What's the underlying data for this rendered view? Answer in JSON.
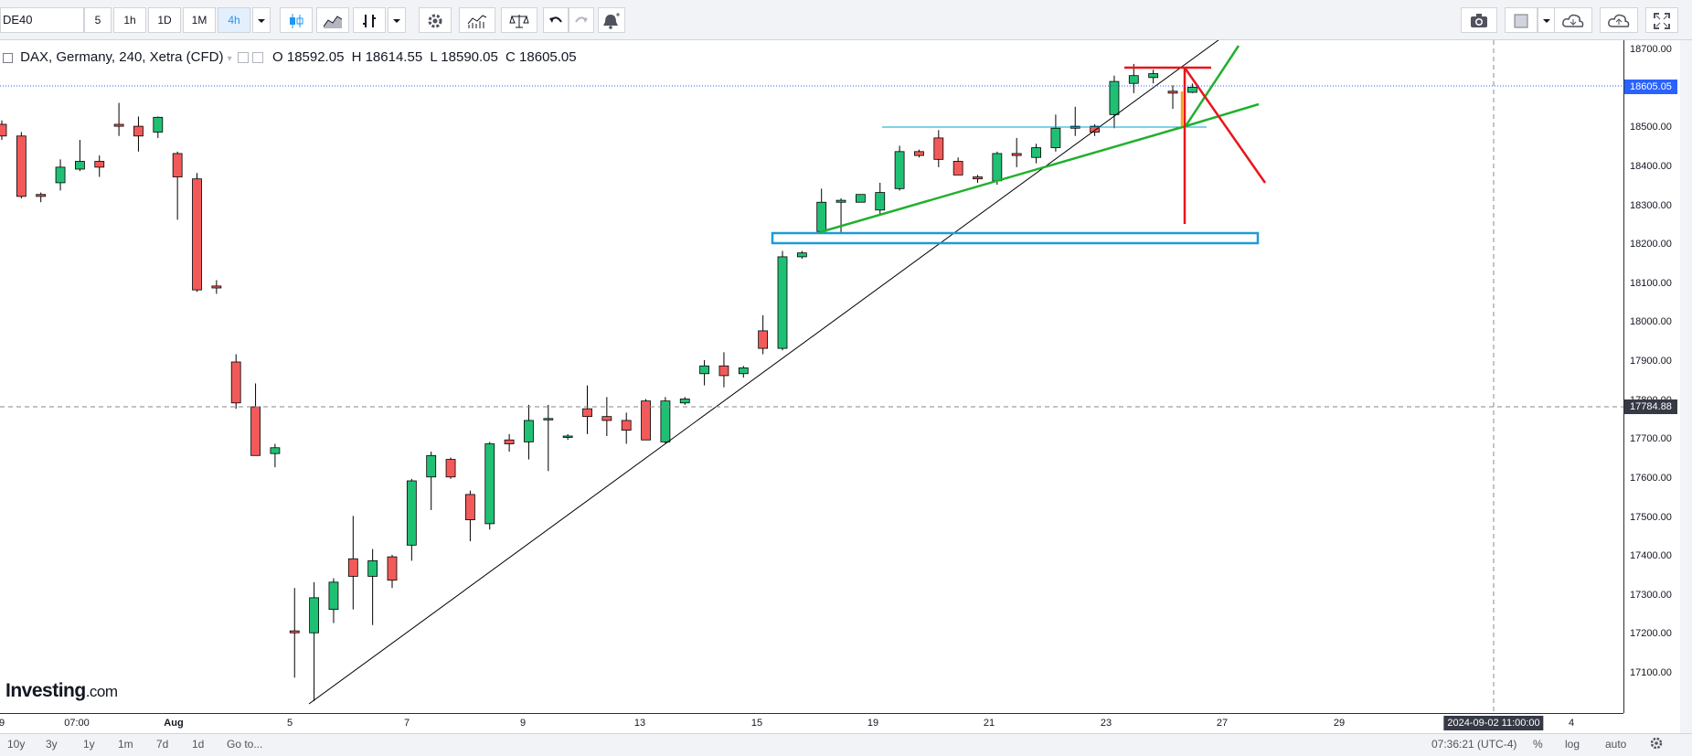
{
  "toolbar": {
    "symbol": "DE40",
    "intervals": [
      "5",
      "1h",
      "1D",
      "1M",
      "4h"
    ],
    "active_interval": "4h",
    "icons": [
      "dropdown-icon",
      "candles-icon",
      "area-chart-icon",
      "bars-icon",
      "dropdown-icon",
      "settings-icon",
      "indicators-icon",
      "compare-icon",
      "undo-icon",
      "redo-icon",
      "alert-icon",
      "camera-icon",
      "drawing-box-icon",
      "dropdown-icon",
      "cloud-download-icon",
      "cloud-upload-icon",
      "fullscreen-icon"
    ]
  },
  "legend": {
    "title": "DAX, Germany, 240, Xetra (CFD)",
    "open": "O 18592.05",
    "high": "H 18614.55",
    "low": "L 18590.05",
    "close": "C 18605.05"
  },
  "price_axis": {
    "ticks": [
      "18700.00",
      "18600.00",
      "18500.00",
      "18400.00",
      "18300.00",
      "18200.00",
      "18100.00",
      "18000.00",
      "17900.00",
      "17800.00",
      "17700.00",
      "17600.00",
      "17500.00",
      "17400.00",
      "17300.00",
      "17200.00",
      "17100.00"
    ],
    "last_price": "18605.05",
    "crosshair_price": "17784.88"
  },
  "time_axis": {
    "ticks": [
      "9",
      "07:00",
      "Aug",
      "5",
      "7",
      "9",
      "13",
      "15",
      "19",
      "21",
      "23",
      "27",
      "29",
      "4"
    ],
    "crosshair_time": "2024-09-02 11:00:00"
  },
  "bottom_bar": {
    "ranges": [
      "10y",
      "3y",
      "1y",
      "1m",
      "7d",
      "1d",
      "Go to..."
    ],
    "clock": "07:36:21 (UTC-4)",
    "percent": "%",
    "log": "log",
    "auto": "auto"
  },
  "logo": {
    "main": "Investing",
    "suffix": ".com"
  },
  "colors": {
    "up": "#089981",
    "down": "#f23645",
    "up_fill": "#26a69a",
    "down_fill": "#ef5350",
    "accent": "#2962ff",
    "trend_green": "#22b02e",
    "trend_red": "#e8151b",
    "box_blue": "#1e9bd7"
  },
  "chart_data": {
    "type": "candlestick",
    "symbol": "DAX, Germany, 240, Xetra (CFD)",
    "ylim": [
      17010,
      18740
    ],
    "y_ticks": [
      17100,
      17200,
      17300,
      17400,
      17500,
      17600,
      17700,
      17800,
      17900,
      18000,
      18100,
      18200,
      18300,
      18400,
      18500,
      18600,
      18700
    ],
    "last_price": 18605.05,
    "crosshair_price": 17784.88,
    "candles": [
      {
        "o": 18510,
        "h": 18520,
        "l": 18470,
        "c": 18480
      },
      {
        "o": 18480,
        "h": 18490,
        "l": 18320,
        "c": 18325
      },
      {
        "o": 18330,
        "h": 18335,
        "l": 18310,
        "c": 18325
      },
      {
        "o": 18360,
        "h": 18420,
        "l": 18340,
        "c": 18400
      },
      {
        "o": 18395,
        "h": 18470,
        "l": 18390,
        "c": 18415
      },
      {
        "o": 18415,
        "h": 18430,
        "l": 18375,
        "c": 18400
      },
      {
        "o": 18510,
        "h": 18565,
        "l": 18480,
        "c": 18505
      },
      {
        "o": 18505,
        "h": 18530,
        "l": 18440,
        "c": 18480
      },
      {
        "o": 18490,
        "h": 18530,
        "l": 18475,
        "c": 18528
      },
      {
        "o": 18435,
        "h": 18440,
        "l": 18265,
        "c": 18375
      },
      {
        "o": 18370,
        "h": 18385,
        "l": 18080,
        "c": 18085
      },
      {
        "o": 18095,
        "h": 18110,
        "l": 18075,
        "c": 18090
      },
      {
        "o": 17900,
        "h": 17920,
        "l": 17780,
        "c": 17795
      },
      {
        "o": 17785,
        "h": 17845,
        "l": 17660,
        "c": 17660
      },
      {
        "o": 17665,
        "h": 17690,
        "l": 17630,
        "c": 17680
      },
      {
        "o": 17210,
        "h": 17320,
        "l": 17090,
        "c": 17205
      },
      {
        "o": 17205,
        "h": 17335,
        "l": 17030,
        "c": 17295
      },
      {
        "o": 17265,
        "h": 17345,
        "l": 17230,
        "c": 17335
      },
      {
        "o": 17395,
        "h": 17505,
        "l": 17265,
        "c": 17350
      },
      {
        "o": 17350,
        "h": 17420,
        "l": 17225,
        "c": 17390
      },
      {
        "o": 17400,
        "h": 17405,
        "l": 17320,
        "c": 17340
      },
      {
        "o": 17430,
        "h": 17600,
        "l": 17390,
        "c": 17595
      },
      {
        "o": 17605,
        "h": 17670,
        "l": 17520,
        "c": 17660
      },
      {
        "o": 17650,
        "h": 17655,
        "l": 17600,
        "c": 17605
      },
      {
        "o": 17560,
        "h": 17570,
        "l": 17440,
        "c": 17495
      },
      {
        "o": 17485,
        "h": 17695,
        "l": 17470,
        "c": 17690
      },
      {
        "o": 17700,
        "h": 17715,
        "l": 17670,
        "c": 17690
      },
      {
        "o": 17695,
        "h": 17790,
        "l": 17650,
        "c": 17750
      },
      {
        "o": 17755,
        "h": 17790,
        "l": 17620,
        "c": 17755
      },
      {
        "o": 17710,
        "h": 17715,
        "l": 17700,
        "c": 17710
      },
      {
        "o": 17780,
        "h": 17840,
        "l": 17715,
        "c": 17760
      },
      {
        "o": 17760,
        "h": 17810,
        "l": 17710,
        "c": 17750
      },
      {
        "o": 17750,
        "h": 17770,
        "l": 17690,
        "c": 17725
      },
      {
        "o": 17800,
        "h": 17805,
        "l": 17700,
        "c": 17700
      },
      {
        "o": 17695,
        "h": 17810,
        "l": 17690,
        "c": 17800
      },
      {
        "o": 17795,
        "h": 17810,
        "l": 17790,
        "c": 17805
      },
      {
        "o": 17870,
        "h": 17905,
        "l": 17840,
        "c": 17890
      },
      {
        "o": 17890,
        "h": 17925,
        "l": 17835,
        "c": 17865
      },
      {
        "o": 17870,
        "h": 17890,
        "l": 17860,
        "c": 17885
      },
      {
        "o": 17980,
        "h": 18020,
        "l": 17920,
        "c": 17935
      },
      {
        "o": 17935,
        "h": 18185,
        "l": 17930,
        "c": 18170
      },
      {
        "o": 18170,
        "h": 18185,
        "l": 18165,
        "c": 18180
      },
      {
        "o": 18235,
        "h": 18345,
        "l": 18230,
        "c": 18310
      },
      {
        "o": 18310,
        "h": 18320,
        "l": 18230,
        "c": 18315
      },
      {
        "o": 18310,
        "h": 18330,
        "l": 18310,
        "c": 18330
      },
      {
        "o": 18290,
        "h": 18360,
        "l": 18280,
        "c": 18335
      },
      {
        "o": 18345,
        "h": 18455,
        "l": 18340,
        "c": 18440
      },
      {
        "o": 18440,
        "h": 18445,
        "l": 18425,
        "c": 18430
      },
      {
        "o": 18475,
        "h": 18495,
        "l": 18400,
        "c": 18420
      },
      {
        "o": 18415,
        "h": 18425,
        "l": 18380,
        "c": 18380
      },
      {
        "o": 18375,
        "h": 18380,
        "l": 18360,
        "c": 18370
      },
      {
        "o": 18365,
        "h": 18440,
        "l": 18355,
        "c": 18435
      },
      {
        "o": 18435,
        "h": 18475,
        "l": 18400,
        "c": 18430
      },
      {
        "o": 18425,
        "h": 18460,
        "l": 18410,
        "c": 18450
      },
      {
        "o": 18450,
        "h": 18535,
        "l": 18440,
        "c": 18500
      },
      {
        "o": 18500,
        "h": 18555,
        "l": 18480,
        "c": 18505
      },
      {
        "o": 18505,
        "h": 18510,
        "l": 18480,
        "c": 18490
      },
      {
        "o": 18535,
        "h": 18635,
        "l": 18500,
        "c": 18620
      },
      {
        "o": 18615,
        "h": 18665,
        "l": 18590,
        "c": 18635
      },
      {
        "o": 18630,
        "h": 18650,
        "l": 18615,
        "c": 18640
      },
      {
        "o": 18595,
        "h": 18610,
        "l": 18550,
        "c": 18590
      },
      {
        "o": 18592.05,
        "h": 18614.55,
        "l": 18590.05,
        "c": 18605.05
      }
    ]
  }
}
